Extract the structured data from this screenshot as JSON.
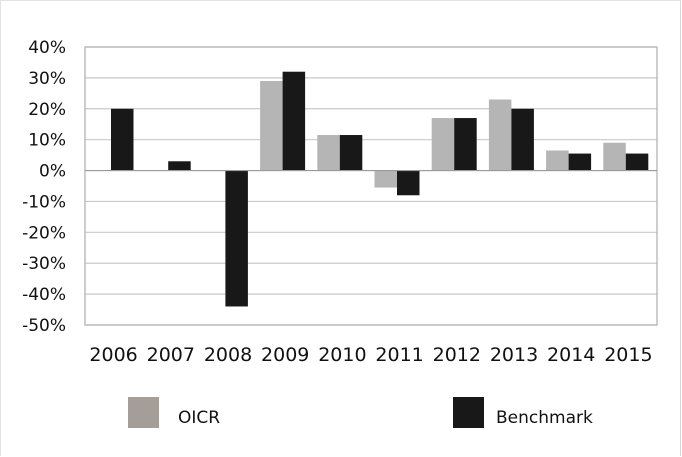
{
  "chart_data": {
    "type": "bar",
    "title": "",
    "xlabel": "",
    "ylabel": "",
    "categories": [
      "2006",
      "2007",
      "2008",
      "2009",
      "2010",
      "2011",
      "2012",
      "2013",
      "2014",
      "2015"
    ],
    "series": [
      {
        "name": "OICR",
        "color": "#b5b5b5",
        "values": [
          null,
          null,
          null,
          29,
          11.5,
          -5.5,
          17,
          23,
          6.5,
          9
        ]
      },
      {
        "name": "Benchmark",
        "color": "#181818",
        "values": [
          20,
          3,
          -44,
          32,
          11.5,
          -8,
          17,
          20,
          5.5,
          5.5
        ]
      }
    ],
    "ylim": [
      -50,
      40
    ],
    "yticks": [
      {
        "value": 40,
        "label": "40%"
      },
      {
        "value": 30,
        "label": "30%"
      },
      {
        "value": 20,
        "label": "20%"
      },
      {
        "value": 10,
        "label": "10%"
      },
      {
        "value": 0,
        "label": "0%"
      },
      {
        "value": -10,
        "label": "-10%"
      },
      {
        "value": -20,
        "label": "-20%"
      },
      {
        "value": -30,
        "label": "-30%"
      },
      {
        "value": -40,
        "label": "-40%"
      },
      {
        "value": -50,
        "label": "-50%"
      }
    ],
    "grid": true,
    "legend": {
      "position": "bottom",
      "items": [
        {
          "label": "OICR",
          "color": "#a59e98"
        },
        {
          "label": "Benchmark",
          "color": "#181818"
        }
      ]
    }
  }
}
